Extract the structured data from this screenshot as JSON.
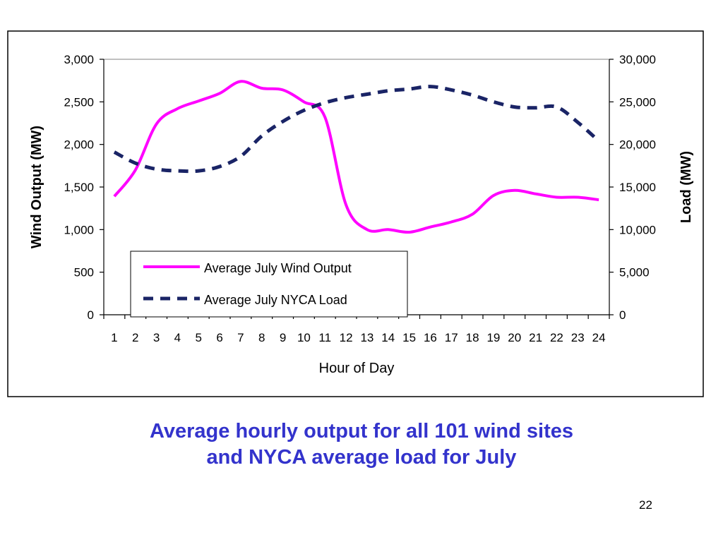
{
  "chart_data": {
    "type": "line",
    "xlabel": "Hour of Day",
    "ylabel": "Wind Output (MW)",
    "y2label": "Load (MW)",
    "x": [
      1,
      2,
      3,
      4,
      5,
      6,
      7,
      8,
      9,
      10,
      11,
      12,
      13,
      14,
      15,
      16,
      17,
      18,
      19,
      20,
      21,
      22,
      23,
      24
    ],
    "ylim": [
      0,
      3000
    ],
    "y2lim": [
      0,
      30000
    ],
    "yticks": [
      "0",
      "500",
      "1,000",
      "1,500",
      "2,000",
      "2,500",
      "3,000"
    ],
    "y2ticks": [
      "0",
      "5,000",
      "10,000",
      "15,000",
      "20,000",
      "25,000",
      "30,000"
    ],
    "grid": false,
    "legend": "inside-bottom-left",
    "series": [
      {
        "name": "Average July Wind Output",
        "axis": "left",
        "color": "#ff00ff",
        "style": "solid",
        "values": [
          1390,
          1700,
          2240,
          2420,
          2510,
          2600,
          2740,
          2660,
          2640,
          2500,
          2320,
          1290,
          1000,
          1000,
          970,
          1030,
          1090,
          1180,
          1400,
          1460,
          1420,
          1380,
          1380,
          1350
        ]
      },
      {
        "name": "Average July NYCA Load",
        "axis": "right",
        "color": "#1a2466",
        "style": "dashed",
        "values": [
          19100,
          17800,
          17100,
          16900,
          16900,
          17400,
          18600,
          21000,
          22700,
          24000,
          24900,
          25500,
          25900,
          26300,
          26500,
          26800,
          26400,
          25800,
          25000,
          24400,
          24300,
          24400,
          22600,
          20400
        ]
      }
    ]
  },
  "caption": {
    "line1": "Average hourly output for all 101 wind sites",
    "line2": "and NYCA average load for July"
  },
  "page_number": "22"
}
